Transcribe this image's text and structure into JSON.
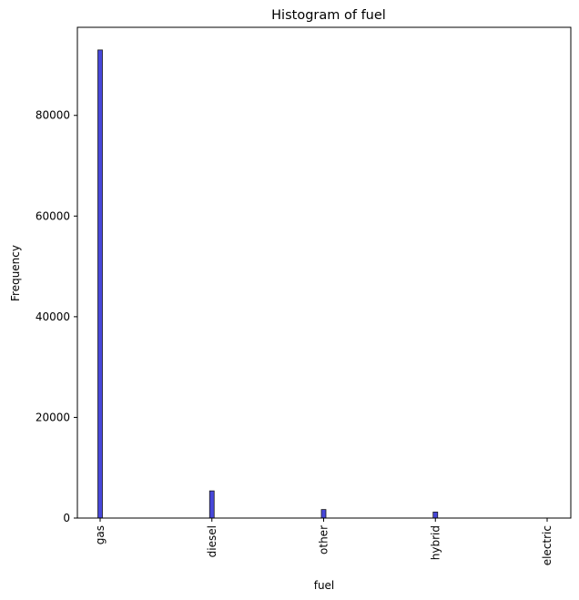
{
  "chart_data": {
    "type": "bar",
    "title": "Histogram of fuel",
    "xlabel": "fuel",
    "ylabel": "Frequency",
    "categories": [
      "gas",
      "diesel",
      "other",
      "hybrid",
      "electric"
    ],
    "values": [
      93000,
      5400,
      1700,
      1200,
      20
    ],
    "ylim": [
      0,
      97500
    ],
    "yticks": [
      0,
      20000,
      40000,
      60000,
      80000
    ],
    "ytick_labels": [
      "0",
      "20000",
      "40000",
      "60000",
      "80000"
    ],
    "grid": false,
    "bar_color": "#0000cc",
    "bar_fill_opacity": 0.72,
    "bar_edge_color": "#1a1a1a"
  }
}
